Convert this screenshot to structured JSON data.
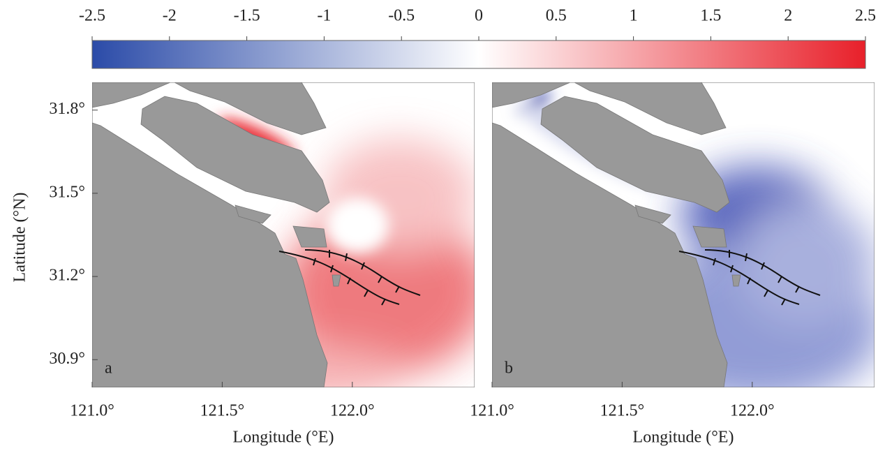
{
  "colorbar": {
    "lim": [
      -2.5,
      2.5
    ],
    "ticks": [
      -2.5,
      -2,
      -1.5,
      -1,
      -0.5,
      0,
      0.5,
      1,
      1.5,
      2,
      2.5
    ],
    "colors": [
      "#2b4ba8",
      "#ffffff",
      "#e8202a"
    ]
  },
  "panels": [
    {
      "label": "a"
    },
    {
      "label": "b"
    }
  ],
  "x_axis": {
    "label": "Longitude (°E)",
    "lim": [
      121.0,
      122.47
    ],
    "ticks": [
      {
        "value": 121.0,
        "label": "121.0°"
      },
      {
        "value": 121.5,
        "label": "121.5°"
      },
      {
        "value": 122.0,
        "label": "122.0°"
      }
    ]
  },
  "y_axis": {
    "label": "Latitude (°N)",
    "lim": [
      30.8,
      31.9
    ],
    "ticks": [
      {
        "value": 30.9,
        "label": "30.9°"
      },
      {
        "value": 31.2,
        "label": "31.2°"
      },
      {
        "value": 31.5,
        "label": "31.5°"
      },
      {
        "value": 31.8,
        "label": "31.8°"
      }
    ]
  }
}
